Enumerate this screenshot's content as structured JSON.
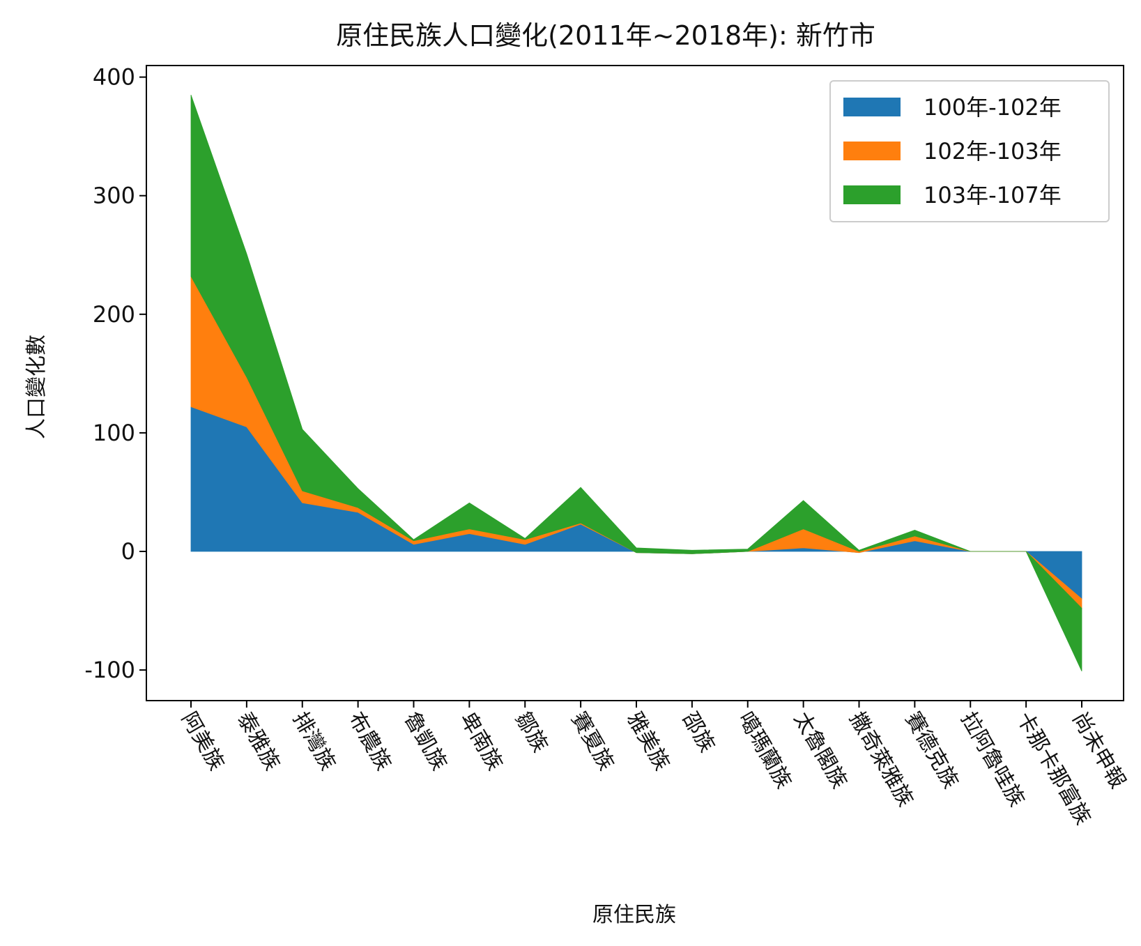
{
  "chart_data": {
    "type": "area",
    "stacked": true,
    "title": "原住民族人口變化(2011年~2018年): 新竹市",
    "xlabel": "原住民族",
    "ylabel": "人口變化數",
    "ylim": [
      -125,
      410
    ],
    "yticks": [
      -100,
      0,
      100,
      200,
      300,
      400
    ],
    "ytick_labels": [
      "-100",
      "0",
      "100",
      "200",
      "300",
      "400"
    ],
    "grid": false,
    "legend_position": "top-right",
    "categories": [
      "阿美族",
      "泰雅族",
      "排灣族",
      "布農族",
      "魯凱族",
      "卑南族",
      "鄒族",
      "賽夏族",
      "雅美族",
      "邵族",
      "噶瑪蘭族",
      "太魯閣族",
      "撒奇萊雅族",
      "賽德克族",
      "拉阿魯哇族",
      "卡那卡那富族",
      "尚未申報"
    ],
    "series": [
      {
        "name": "100年-102年",
        "color": "#1f77b4",
        "values": [
          122,
          105,
          41,
          33,
          6,
          15,
          6,
          23,
          -1,
          -2,
          0,
          3,
          -1,
          9,
          0,
          0,
          -40
        ]
      },
      {
        "name": "102年-103年",
        "color": "#ff7f0e",
        "values": [
          110,
          42,
          10,
          4,
          3,
          4,
          4,
          1,
          0,
          0,
          0,
          16,
          1,
          4,
          0,
          0,
          -8
        ]
      },
      {
        "name": "103年-107年",
        "color": "#2ca02c",
        "values": [
          153,
          104,
          52,
          16,
          1,
          22,
          1,
          30,
          4,
          3,
          2,
          24,
          1,
          5,
          0,
          0,
          -53
        ]
      }
    ]
  }
}
